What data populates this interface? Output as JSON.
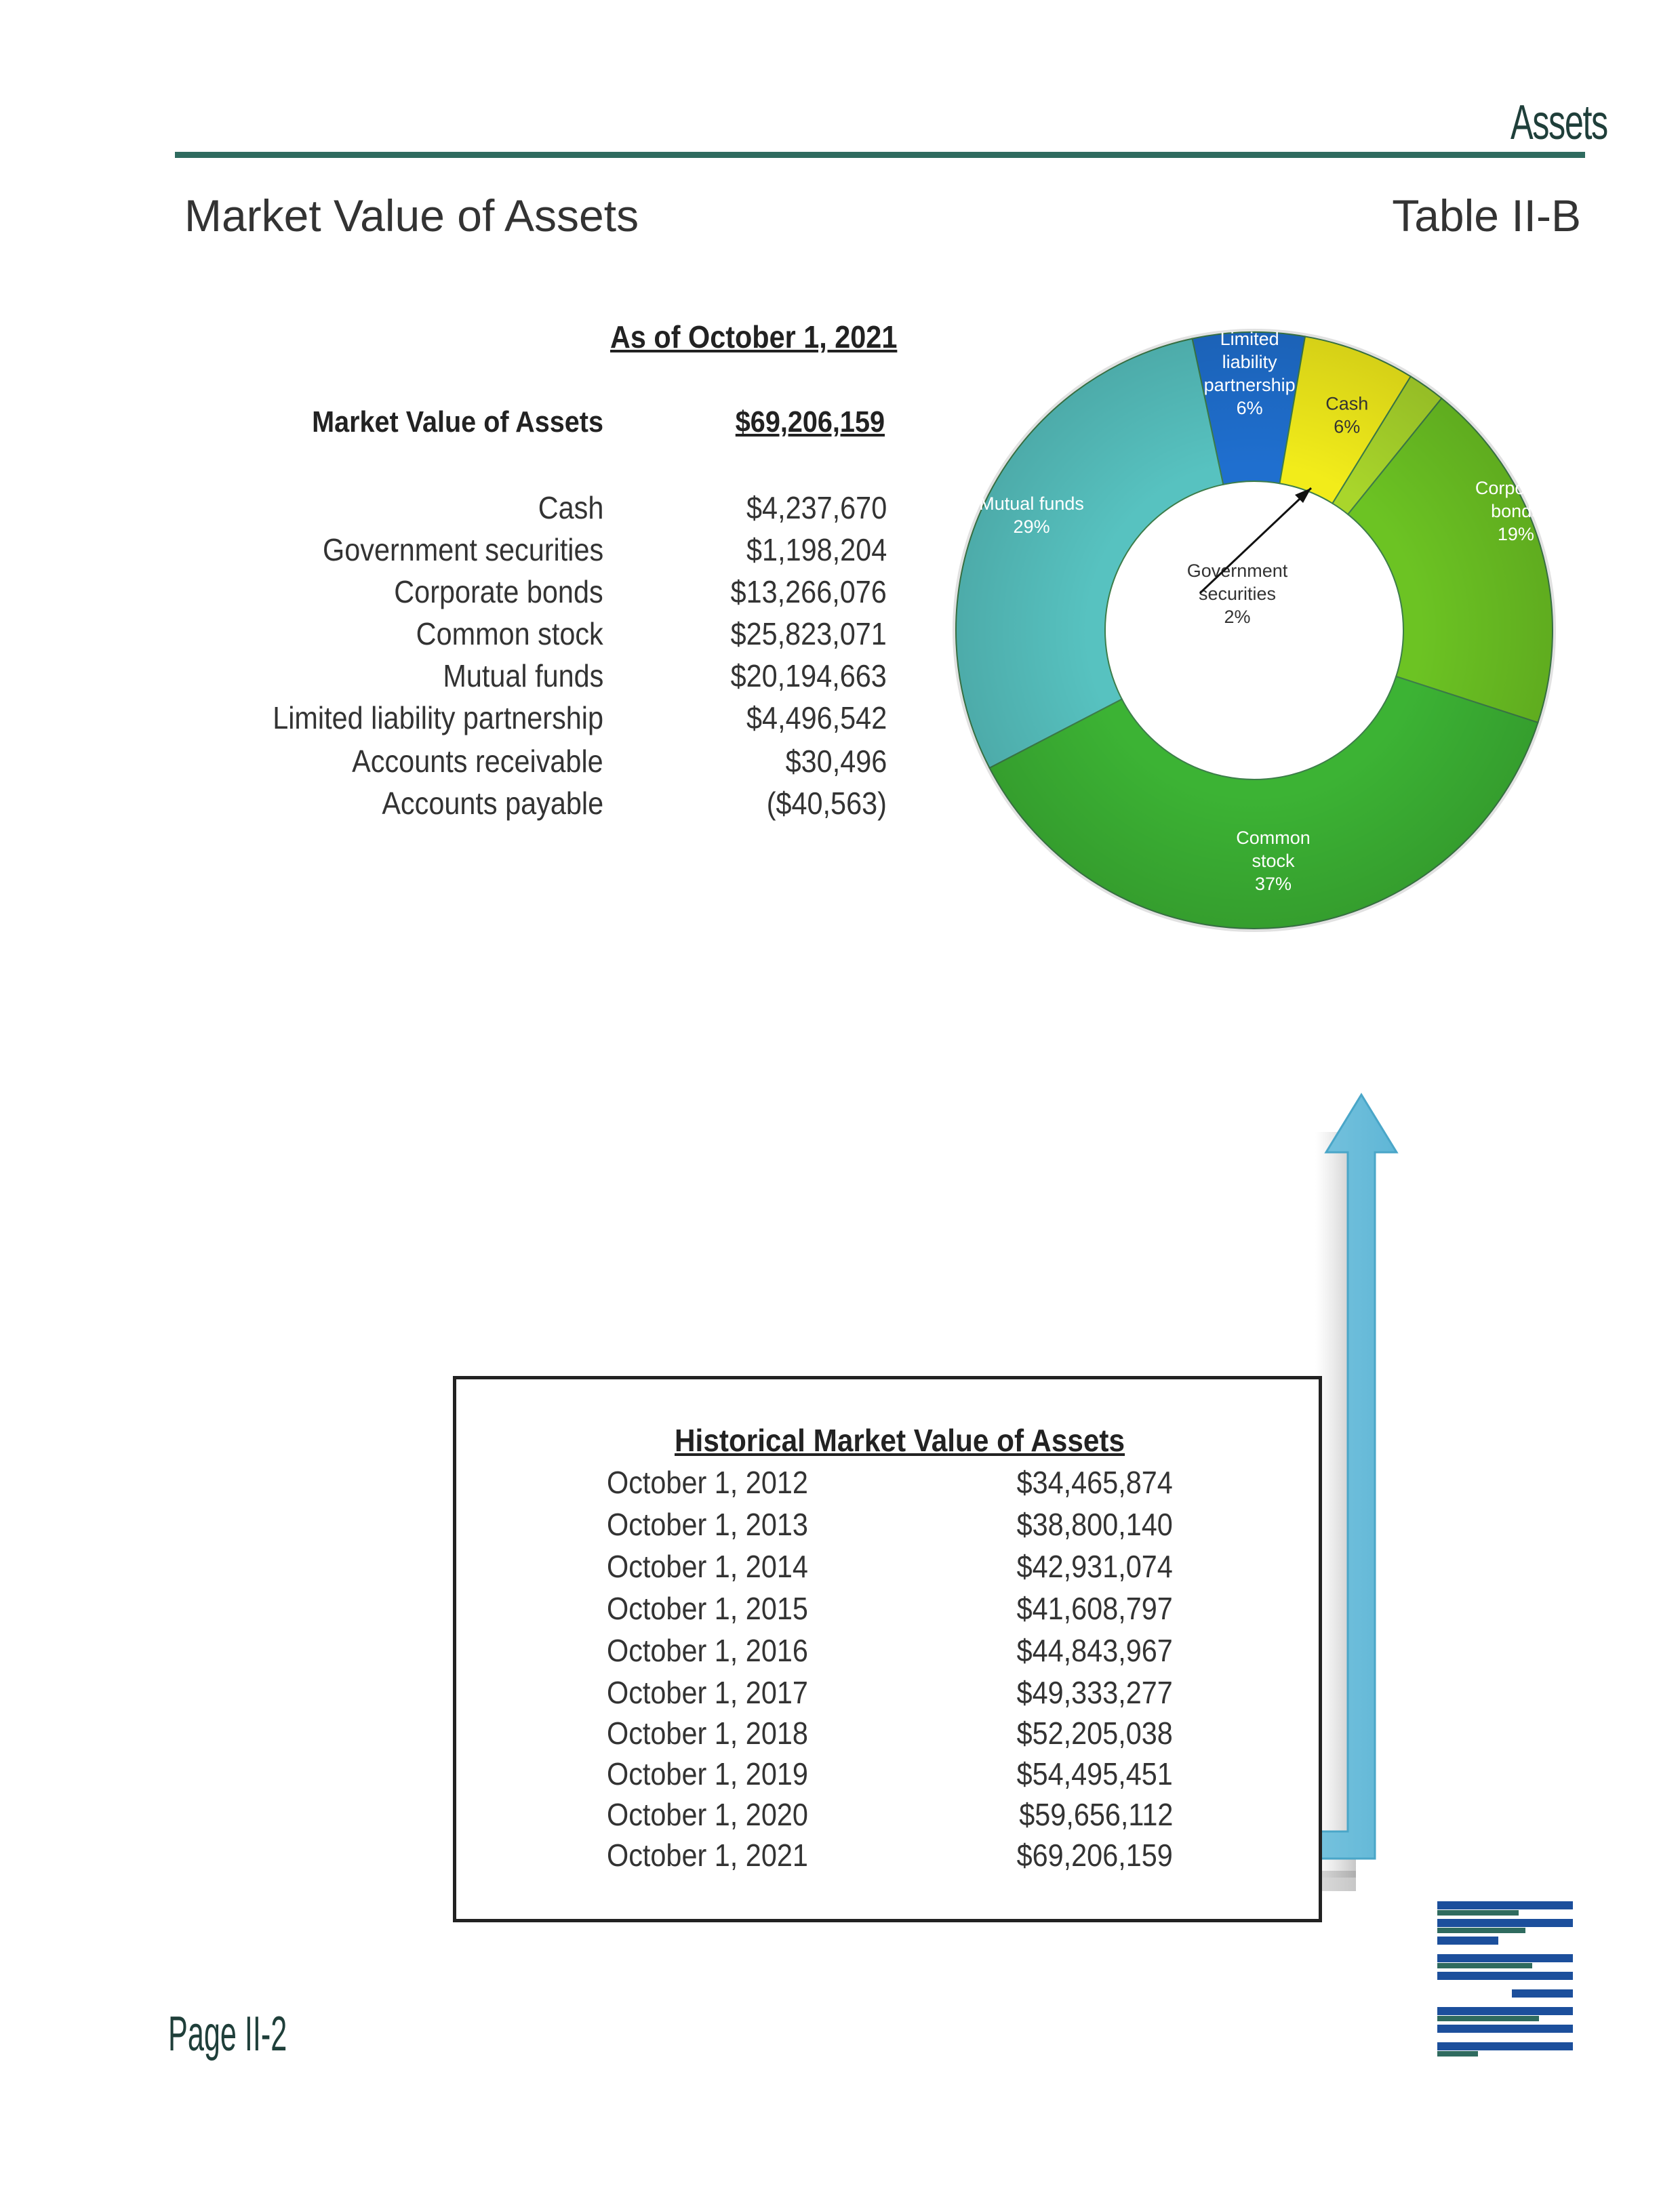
{
  "header": {
    "section": "Assets",
    "title": "Market Value of Assets",
    "table_id": "Table II-B"
  },
  "summary": {
    "as_of": "As of October 1, 2021",
    "total_label": "Market Value of Assets",
    "total_value": "$69,206,159",
    "items": [
      {
        "label": "Cash",
        "value": "$4,237,670"
      },
      {
        "label": "Government securities",
        "value": "$1,198,204"
      },
      {
        "label": "Corporate bonds",
        "value": "$13,266,076"
      },
      {
        "label": "Common stock",
        "value": "$25,823,071"
      },
      {
        "label": "Mutual funds",
        "value": "$20,194,663"
      },
      {
        "label": "Limited liability partnership",
        "value": "$4,496,542"
      },
      {
        "label": "Accounts receivable",
        "value": "$30,496"
      },
      {
        "label": "Accounts payable",
        "value": "($40,563)"
      }
    ]
  },
  "chart_data": {
    "type": "pie",
    "slices": [
      {
        "label": "Limited liability partnership",
        "lines": [
          "Limited",
          "liability",
          "partnership",
          "6%"
        ],
        "percent": 6,
        "color": "#1f6fcf"
      },
      {
        "label": "Cash",
        "lines": [
          "Cash",
          "6%"
        ],
        "percent": 6,
        "color": "#f2ec1a"
      },
      {
        "label": "Government securities",
        "lines": [
          "Government",
          "securities",
          "2%"
        ],
        "percent": 2,
        "color": "#a9d62b"
      },
      {
        "label": "Corporate bonds",
        "lines": [
          "Corporate",
          "bonds",
          "19%"
        ],
        "percent": 19,
        "color": "#6cc323"
      },
      {
        "label": "Common stock",
        "lines": [
          "Common",
          "stock",
          "37%"
        ],
        "percent": 37,
        "color": "#3cb334"
      },
      {
        "label": "Mutual funds",
        "lines": [
          "Mutual funds",
          "29%"
        ],
        "percent": 29,
        "color": "#57c2c0"
      }
    ]
  },
  "history": {
    "title": "Historical Market Value of Assets",
    "rows": [
      {
        "date": "October 1, 2012",
        "value": "$34,465,874"
      },
      {
        "date": "October 1, 2013",
        "value": "$38,800,140"
      },
      {
        "date": "October 1, 2014",
        "value": "$42,931,074"
      },
      {
        "date": "October 1, 2015",
        "value": "$41,608,797"
      },
      {
        "date": "October 1, 2016",
        "value": "$44,843,967"
      },
      {
        "date": "October 1, 2017",
        "value": "$49,333,277"
      },
      {
        "date": "October 1, 2018",
        "value": "$52,205,038"
      },
      {
        "date": "October 1, 2019",
        "value": "$54,495,451"
      },
      {
        "date": "October 1, 2020",
        "value": "$59,656,112"
      },
      {
        "date": "October 1, 2021",
        "value": "$69,206,159"
      }
    ]
  },
  "footer": {
    "page": "Page II-2"
  }
}
